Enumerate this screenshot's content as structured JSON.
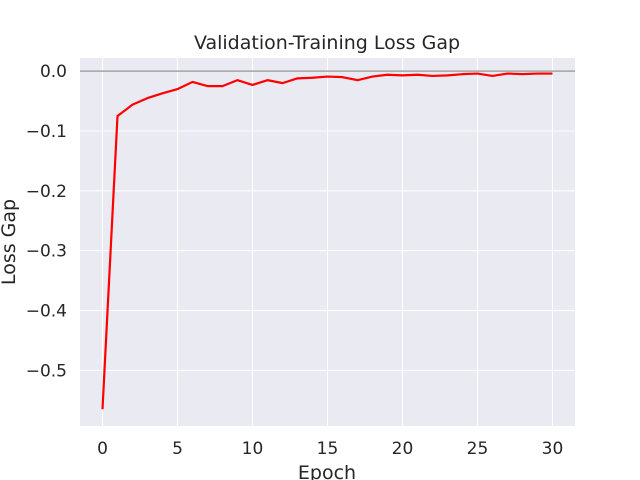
{
  "chart_data": {
    "type": "line",
    "title": "Validation-Training Loss Gap",
    "xlabel": "Epoch",
    "ylabel": "Loss Gap",
    "xlim": [
      -1.5,
      31.5
    ],
    "ylim": [
      -0.593,
      0.022
    ],
    "xticks": [
      0,
      5,
      10,
      15,
      20,
      25,
      30
    ],
    "yticks": [
      0.0,
      -0.1,
      -0.2,
      -0.3,
      -0.4,
      -0.5
    ],
    "xtick_labels": [
      "0",
      "5",
      "10",
      "15",
      "20",
      "25",
      "30"
    ],
    "ytick_labels": [
      "0.0",
      "−0.1",
      "−0.2",
      "−0.3",
      "−0.4",
      "−0.5"
    ],
    "grid": true,
    "reference_line": {
      "y": 0.0,
      "color": "#a3a3a3"
    },
    "series": [
      {
        "color": "#ff0000",
        "x": [
          0,
          1,
          2,
          3,
          4,
          5,
          6,
          7,
          8,
          9,
          10,
          11,
          12,
          13,
          14,
          15,
          16,
          17,
          18,
          19,
          20,
          21,
          22,
          23,
          24,
          25,
          26,
          27,
          28,
          29,
          30
        ],
        "values": [
          -0.565,
          -0.075,
          -0.056,
          -0.045,
          -0.037,
          -0.03,
          -0.018,
          -0.025,
          -0.025,
          -0.015,
          -0.023,
          -0.015,
          -0.02,
          -0.012,
          -0.011,
          -0.009,
          -0.01,
          -0.015,
          -0.009,
          -0.006,
          -0.007,
          -0.006,
          -0.008,
          -0.007,
          -0.005,
          -0.004,
          -0.008,
          -0.004,
          -0.005,
          -0.004,
          -0.004
        ]
      }
    ],
    "colors": {
      "background": "#eaeaf2",
      "grid": "#ffffff",
      "text": "#262626"
    }
  }
}
